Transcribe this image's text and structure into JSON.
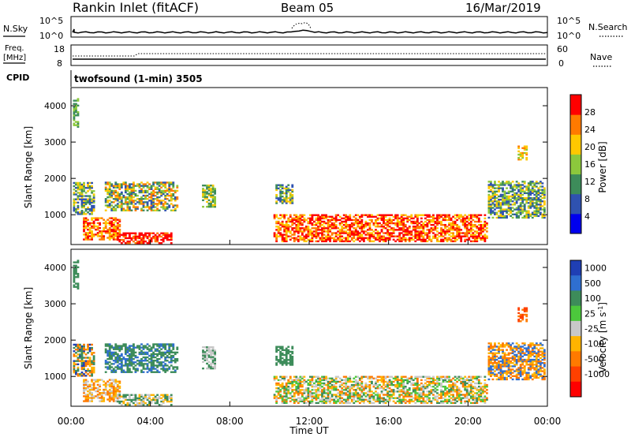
{
  "header": {
    "title": "Rankin Inlet (fitACF)",
    "beam": "Beam 05",
    "date": "16/Mar/2019"
  },
  "status_panel": {
    "nsky_label": "N.Sky",
    "nsearch_label": "N.Search",
    "noise_ticks": [
      "10^5",
      "10^0"
    ],
    "freq_label_line1": "Freq.",
    "freq_label_line2": "[MHz]",
    "freq_ticks": [
      "18",
      "8"
    ],
    "nave_label": "Nave",
    "nave_ticks": [
      "60",
      "0"
    ],
    "cpid_label": "CPID",
    "cpid_text": "twofsound (1-min) 3505"
  },
  "chart_data": [
    {
      "type": "heatmap",
      "name": "power",
      "ylabel": "Slant Range [km]",
      "ylim": [
        180,
        4500
      ],
      "yticks": [
        1000,
        2000,
        3000,
        4000
      ],
      "xlim_hours": [
        0,
        24
      ],
      "colorbar_label": "Power [dB]",
      "colorbar_ticks": [
        4,
        8,
        12,
        16,
        20,
        24,
        28
      ],
      "colorbar_range": [
        0,
        32
      ],
      "colors": [
        "#0000ee",
        "#2f52b0",
        "#3d8c5a",
        "#8cc83c",
        "#ffc800",
        "#ff7a00",
        "#ff0000"
      ]
    },
    {
      "type": "heatmap",
      "name": "velocity",
      "ylabel": "Slant Range [km]",
      "ylim": [
        180,
        4500
      ],
      "yticks": [
        1000,
        2000,
        3000,
        4000
      ],
      "xlim_hours": [
        0,
        24
      ],
      "xlabel": "Time UT",
      "xticks": [
        "00:00",
        "04:00",
        "08:00",
        "12:00",
        "16:00",
        "20:00",
        "00:00"
      ],
      "colorbar_label": "Velocity [m s",
      "colorbar_label_sup": "-1",
      "colorbar_label_end": "]",
      "colorbar_ticks": [
        "1000",
        "500",
        "100",
        "25",
        "-25",
        "-100",
        "-500",
        "-1000"
      ],
      "colors": [
        "#1f3fb4",
        "#2f6fd0",
        "#3d8c5a",
        "#4cc83c",
        "#c8c8c8",
        "#ffb400",
        "#ff7a00",
        "#ff4000",
        "#ff0000"
      ],
      "ground_scatter_color": "#b4b4b4"
    }
  ]
}
